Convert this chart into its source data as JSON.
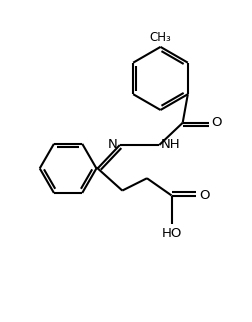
{
  "bg_color": "#ffffff",
  "line_color": "#000000",
  "bond_lw": 1.5,
  "text_color": "#000000",
  "figsize": [
    2.52,
    3.22
  ],
  "dpi": 100,
  "xlim": [
    0,
    10
  ],
  "ylim": [
    0,
    12.8
  ]
}
